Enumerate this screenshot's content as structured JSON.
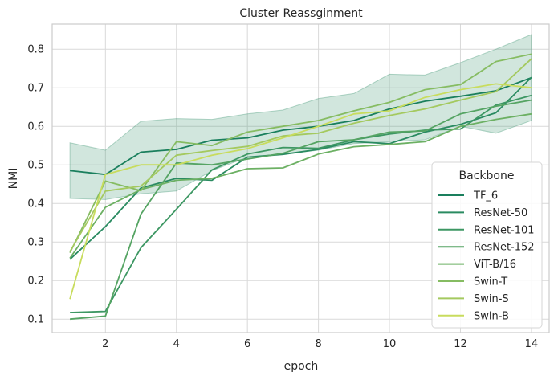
{
  "chart_data": {
    "type": "line",
    "title": "Cluster Reassginment",
    "xlabel": "epoch",
    "ylabel": "NMI",
    "xlim": [
      0.5,
      14.5
    ],
    "ylim": [
      0.065,
      0.865
    ],
    "xticks": [
      2,
      4,
      6,
      8,
      10,
      12,
      14
    ],
    "yticks": [
      0.1,
      0.2,
      0.3,
      0.4,
      0.5,
      0.6,
      0.7,
      0.8
    ],
    "grid": true,
    "legend_title": "Backbone",
    "legend_position": "lower-right",
    "x": [
      1,
      2,
      3,
      4,
      5,
      6,
      7,
      8,
      9,
      10,
      11,
      12,
      13,
      14
    ],
    "band": {
      "color": "#2e8b66",
      "lower": [
        0.413,
        0.41,
        0.425,
        0.432,
        0.485,
        0.52,
        0.528,
        0.538,
        0.555,
        0.56,
        0.565,
        0.6,
        0.582,
        0.615
      ],
      "upper": [
        0.557,
        0.538,
        0.613,
        0.62,
        0.618,
        0.632,
        0.642,
        0.672,
        0.685,
        0.735,
        0.733,
        0.765,
        0.8,
        0.838
      ]
    },
    "series": [
      {
        "name": "TF_6",
        "color": "#1a7f5d",
        "values": [
          0.485,
          0.475,
          0.533,
          0.54,
          0.564,
          0.57,
          0.59,
          0.6,
          0.615,
          0.645,
          0.665,
          0.678,
          0.692,
          0.726
        ]
      },
      {
        "name": "ResNet-50",
        "color": "#2a8b61",
        "values": [
          0.255,
          0.34,
          0.44,
          0.465,
          0.46,
          0.52,
          0.527,
          0.54,
          0.56,
          0.555,
          0.585,
          0.605,
          0.635,
          0.727
        ]
      },
      {
        "name": "ResNet-101",
        "color": "#3d9763",
        "values": [
          0.117,
          0.12,
          0.285,
          0.385,
          0.487,
          0.528,
          0.545,
          0.543,
          0.565,
          0.58,
          0.59,
          0.593,
          0.655,
          0.68
        ]
      },
      {
        "name": "ResNet-152",
        "color": "#55a463",
        "values": [
          0.1,
          0.108,
          0.372,
          0.505,
          0.5,
          0.515,
          0.53,
          0.56,
          0.565,
          0.585,
          0.588,
          0.632,
          0.652,
          0.668
        ]
      },
      {
        "name": "ViT-B/16",
        "color": "#6cb063",
        "values": [
          0.258,
          0.39,
          0.436,
          0.46,
          0.465,
          0.49,
          0.492,
          0.528,
          0.547,
          0.553,
          0.56,
          0.6,
          0.618,
          0.632
        ]
      },
      {
        "name": "Swin-T",
        "color": "#86bc62",
        "values": [
          0.272,
          0.458,
          0.433,
          0.56,
          0.55,
          0.585,
          0.6,
          0.615,
          0.64,
          0.662,
          0.695,
          0.708,
          0.768,
          0.787
        ]
      },
      {
        "name": "Swin-S",
        "color": "#a4c95f",
        "values": [
          0.275,
          0.432,
          0.445,
          0.525,
          0.537,
          0.548,
          0.575,
          0.582,
          0.608,
          0.628,
          0.645,
          0.668,
          0.69,
          0.775
        ]
      },
      {
        "name": "Swin-B",
        "color": "#c8dc5d",
        "values": [
          0.152,
          0.475,
          0.5,
          0.5,
          0.525,
          0.542,
          0.57,
          0.6,
          0.632,
          0.64,
          0.675,
          0.695,
          0.71,
          0.7
        ]
      }
    ]
  }
}
